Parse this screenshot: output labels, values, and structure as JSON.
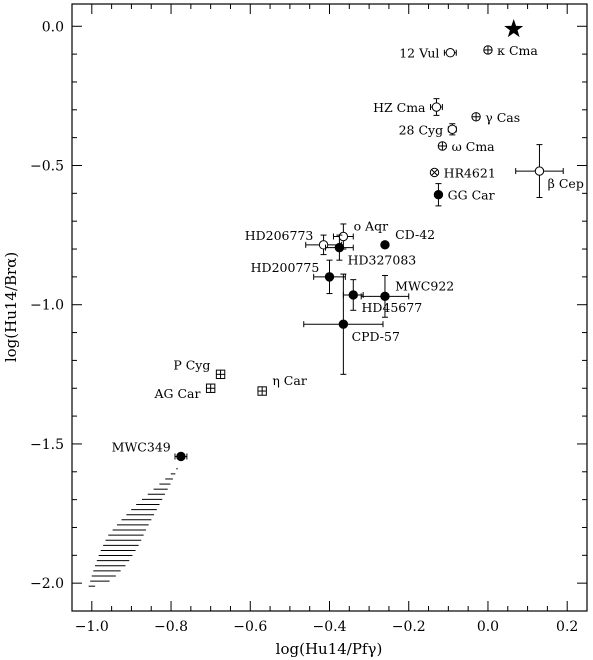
{
  "chart_data": {
    "type": "scatter",
    "title": "",
    "xlabel": "log(Hu14/Pfγ)",
    "ylabel": "log(Hu14/Brα)",
    "xlim": [
      -1.05,
      0.25
    ],
    "ylim": [
      -2.1,
      0.08
    ],
    "xticks": [
      -1.0,
      -0.8,
      -0.6,
      -0.4,
      -0.2,
      0.0,
      0.2
    ],
    "xtick_labels": [
      "−1.0",
      "−0.8",
      "−0.6",
      "−0.4",
      "−0.2",
      "0.0",
      "0.2"
    ],
    "yticks": [
      0.0,
      -0.5,
      -1.0,
      -1.5,
      -2.0
    ],
    "ytick_labels": [
      "0.0",
      "−0.5",
      "−1.0",
      "−1.5",
      "−2.0"
    ],
    "grid": false,
    "points": [
      {
        "label": "κ Cma",
        "x": 0.0,
        "y": -0.085,
        "marker": "circle-plus",
        "xerr": 0.008,
        "yerr": 0.0,
        "label_side": "right"
      },
      {
        "label": "12 Vul",
        "x": -0.095,
        "y": -0.095,
        "marker": "circle-open",
        "xerr": 0.015,
        "yerr": 0.0,
        "label_side": "left"
      },
      {
        "label": "HZ Cma",
        "x": -0.13,
        "y": -0.29,
        "marker": "circle-open",
        "xerr": 0.015,
        "yerr": 0.03,
        "label_side": "left"
      },
      {
        "label": "γ Cas",
        "x": -0.03,
        "y": -0.325,
        "marker": "circle-plus",
        "xerr": 0.008,
        "yerr": 0.0,
        "label_side": "right"
      },
      {
        "label": "28 Cyg",
        "x": -0.09,
        "y": -0.37,
        "marker": "circle-open",
        "xerr": 0.01,
        "yerr": 0.02,
        "label_side": "left"
      },
      {
        "label": "ω Cma",
        "x": -0.115,
        "y": -0.43,
        "marker": "circle-plus",
        "xerr": 0.005,
        "yerr": 0.0,
        "label_side": "right"
      },
      {
        "label": "HR4621",
        "x": -0.135,
        "y": -0.525,
        "marker": "circle-cross",
        "xerr": 0.005,
        "yerr": 0.0,
        "label_side": "right"
      },
      {
        "label": "β Cep",
        "x": 0.13,
        "y": -0.52,
        "marker": "circle-open",
        "xerr": 0.06,
        "yerr": 0.095,
        "label_side": "right-below"
      },
      {
        "label": "GG Car",
        "x": -0.125,
        "y": -0.605,
        "marker": "filled",
        "xerr": 0.0,
        "yerr": 0.04,
        "label_side": "right"
      },
      {
        "label": "ο Aqr",
        "x": -0.365,
        "y": -0.755,
        "marker": "circle-open",
        "xerr": 0.025,
        "yerr": 0.045,
        "label_side": "right-above"
      },
      {
        "label": "HD206773",
        "x": -0.415,
        "y": -0.785,
        "marker": "circle-open",
        "xerr": 0.045,
        "yerr": 0.035,
        "label_side": "left-above"
      },
      {
        "label": "CD-42",
        "x": -0.26,
        "y": -0.785,
        "marker": "filled",
        "xerr": 0.0,
        "yerr": 0.0,
        "label_side": "right-above"
      },
      {
        "label": "HD327083",
        "x": -0.375,
        "y": -0.795,
        "marker": "filled",
        "xerr": 0.035,
        "yerr": 0.045,
        "label_side": "right-below"
      },
      {
        "label": "HD200775",
        "x": -0.4,
        "y": -0.9,
        "marker": "filled",
        "xerr": 0.04,
        "yerr": 0.06,
        "label_side": "left-above"
      },
      {
        "label": "MWC922",
        "x": -0.26,
        "y": -0.97,
        "marker": "filled",
        "xerr": 0.06,
        "yerr": 0.075,
        "label_side": "right-above"
      },
      {
        "label": "HD45677",
        "x": -0.34,
        "y": -0.965,
        "marker": "filled",
        "xerr": 0.025,
        "yerr": 0.055,
        "label_side": "right-below"
      },
      {
        "label": "CPD-57",
        "x": -0.365,
        "y": -1.07,
        "marker": "filled",
        "xerr": 0.1,
        "yerr": 0.18,
        "label_side": "right-below"
      },
      {
        "label": "P Cyg",
        "x": -0.675,
        "y": -1.25,
        "marker": "square-plus",
        "xerr": 0.0,
        "yerr": 0.0,
        "label_side": "left-above"
      },
      {
        "label": "AG Car",
        "x": -0.7,
        "y": -1.3,
        "marker": "square-plus",
        "xerr": 0.0,
        "yerr": 0.0,
        "label_side": "left-below"
      },
      {
        "label": "η Car",
        "x": -0.57,
        "y": -1.31,
        "marker": "square-plus",
        "xerr": 0.0,
        "yerr": 0.0,
        "label_side": "right-above"
      },
      {
        "label": "MWC349",
        "x": -0.775,
        "y": -1.545,
        "marker": "filled",
        "xerr": 0.015,
        "yerr": 0.0,
        "label_side": "left-above"
      }
    ],
    "star_marker": {
      "x": 0.065,
      "y": -0.01
    },
    "hatched_region": {
      "upper_edge": [
        [
          -0.78,
          -1.58
        ],
        [
          -0.81,
          -1.62
        ],
        [
          -0.85,
          -1.67
        ],
        [
          -0.89,
          -1.72
        ],
        [
          -0.93,
          -1.78
        ],
        [
          -0.96,
          -1.83
        ],
        [
          -0.98,
          -1.89
        ],
        [
          -0.995,
          -1.95
        ],
        [
          -1.01,
          -2.02
        ]
      ],
      "lower_edge": [
        [
          -0.78,
          -1.58
        ],
        [
          -0.8,
          -1.64
        ],
        [
          -0.83,
          -1.72
        ],
        [
          -0.86,
          -1.8
        ],
        [
          -0.88,
          -1.86
        ],
        [
          -0.91,
          -1.93
        ],
        [
          -0.95,
          -1.99
        ],
        [
          -1.01,
          -2.02
        ]
      ],
      "line_count": 24
    }
  }
}
